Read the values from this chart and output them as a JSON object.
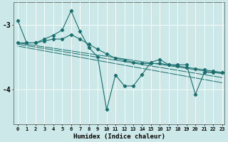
{
  "xlabel": "Humidex (Indice chaleur)",
  "bg_color": "#cce8e8",
  "line_color": "#1a6e6e",
  "grid_color": "#ffffff",
  "xlim": [
    -0.5,
    23.3
  ],
  "ylim": [
    -4.55,
    -2.65
  ],
  "yticks": [
    -4,
    -3
  ],
  "xticks": [
    0,
    1,
    2,
    3,
    4,
    5,
    6,
    7,
    8,
    9,
    10,
    11,
    12,
    13,
    14,
    15,
    16,
    17,
    18,
    19,
    20,
    21,
    22,
    23
  ],
  "trend1_x": [
    0,
    23
  ],
  "trend1_y": [
    -3.28,
    -3.76
  ],
  "trend2_x": [
    0,
    23
  ],
  "trend2_y": [
    -3.28,
    -3.82
  ],
  "trend3_x": [
    0,
    23
  ],
  "trend3_y": [
    -3.28,
    -3.88
  ],
  "line_zigzag": [
    [
      0,
      -2.93
    ],
    [
      1,
      -3.28
    ],
    [
      2,
      -3.28
    ],
    [
      3,
      -3.22
    ],
    [
      4,
      -3.16
    ],
    [
      5,
      -3.08
    ],
    [
      6,
      -2.78
    ],
    [
      7,
      -3.1
    ],
    [
      8,
      -3.35
    ],
    [
      9,
      -3.5
    ],
    [
      10,
      -4.32
    ],
    [
      11,
      -3.78
    ],
    [
      12,
      -3.95
    ],
    [
      13,
      -3.95
    ],
    [
      14,
      -3.77
    ],
    [
      15,
      -3.58
    ],
    [
      16,
      -3.54
    ],
    [
      17,
      -3.62
    ],
    [
      18,
      -3.62
    ],
    [
      19,
      -3.62
    ],
    [
      20,
      -4.08
    ],
    [
      21,
      -3.74
    ],
    [
      22,
      -3.74
    ],
    [
      23,
      -3.74
    ]
  ],
  "line_smooth": [
    [
      0,
      -3.28
    ],
    [
      1,
      -3.28
    ],
    [
      2,
      -3.28
    ],
    [
      3,
      -3.25
    ],
    [
      4,
      -3.22
    ],
    [
      5,
      -3.22
    ],
    [
      6,
      -3.15
    ],
    [
      7,
      -3.22
    ],
    [
      8,
      -3.3
    ],
    [
      9,
      -3.38
    ],
    [
      10,
      -3.45
    ],
    [
      11,
      -3.52
    ],
    [
      12,
      -3.55
    ],
    [
      13,
      -3.58
    ],
    [
      14,
      -3.6
    ],
    [
      15,
      -3.6
    ],
    [
      16,
      -3.6
    ],
    [
      17,
      -3.62
    ],
    [
      18,
      -3.64
    ],
    [
      19,
      -3.66
    ],
    [
      20,
      -3.68
    ],
    [
      21,
      -3.7
    ],
    [
      22,
      -3.72
    ],
    [
      23,
      -3.74
    ]
  ]
}
